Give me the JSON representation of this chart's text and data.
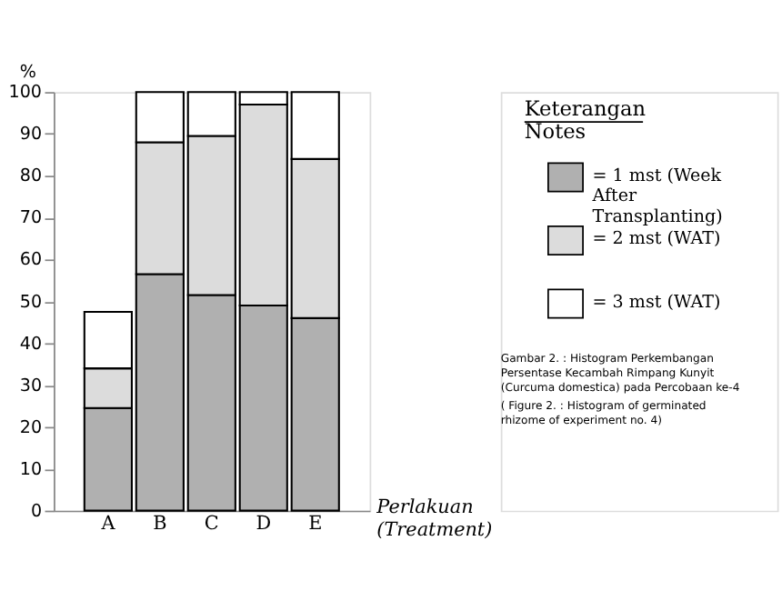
{
  "chart_data": {
    "type": "bar",
    "stacked": true,
    "categories": [
      "A",
      "B",
      "C",
      "D",
      "E"
    ],
    "series": [
      {
        "name": "= 1 mst (Week After Transplanting)",
        "color": "#b0b0b0",
        "values": [
          24.5,
          56.5,
          51.5,
          49,
          46
        ]
      },
      {
        "name": "= 2 mst (WAT)",
        "color": "#dcdcdc",
        "values": [
          9.5,
          31.5,
          38,
          48,
          38
        ]
      },
      {
        "name": "= 3 mst (WAT)",
        "color": "#ffffff",
        "values": [
          13.5,
          12,
          10.5,
          3,
          16
        ]
      }
    ],
    "ylim": [
      0,
      100
    ],
    "yticks": [
      0,
      10,
      20,
      30,
      40,
      50,
      60,
      70,
      80,
      90,
      100
    ],
    "ylabel": "%",
    "xlabel": "Perlakuan\n(Treatment)",
    "legend_title": "Keterangan\nNotes",
    "legend": "right",
    "grid": false,
    "annotations": [
      "Gambar 2. : Histogram Perkembangan Persentase Kecambah Rimpang Kunyit (Curcuma domestica) pada Percobaan ke-4",
      "( Figure 2. : Histogram of germinated rhizome of experiment no. 4)"
    ]
  }
}
